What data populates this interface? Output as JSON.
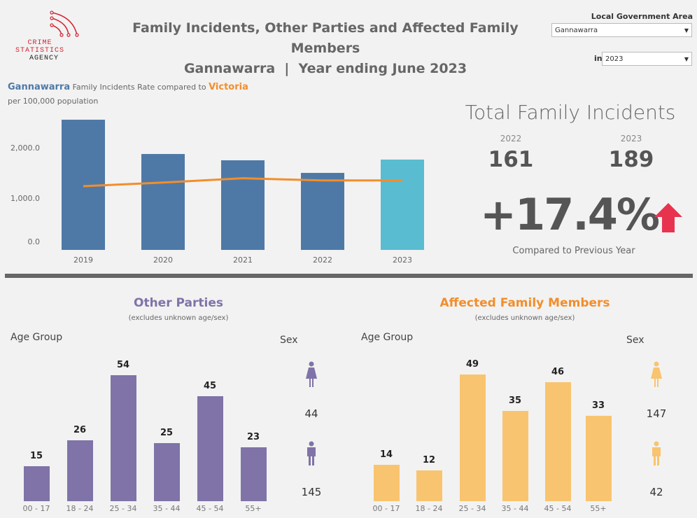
{
  "logo": {
    "line1": "CRIME",
    "line2": "STATISTICS",
    "line3": "AGENCY"
  },
  "header": {
    "title_line1": "Family Incidents, Other Parties and Affected Family Members",
    "title_line2": "Gannawarra  |  Year ending June 2023"
  },
  "filters": {
    "lga_label": "Local Government Area",
    "lga_value": "Gannawarra",
    "year_prefix": "in",
    "year_value": "2023"
  },
  "rate_chart": {
    "area": "Gannawarra",
    "middle": "Family Incidents Rate compared to",
    "comparison": "Victoria",
    "subtitle": "per 100,000 population"
  },
  "total": {
    "title": "Total Family Incidents",
    "prev_year": "2022",
    "prev_value": "161",
    "curr_year": "2023",
    "curr_value": "189",
    "change": "+17.4%",
    "change_caption": "Compared to Previous Year",
    "arrow_color": "#e8334f"
  },
  "other_parties": {
    "title": "Other Parties",
    "subtitle": "(excludes unknown age/sex)",
    "age_label": "Age Group",
    "sex_label": "Sex",
    "female": "44",
    "male": "145",
    "color": "#8073a8"
  },
  "affected": {
    "title": "Affected Family Members",
    "subtitle": "(excludes unknown age/sex)",
    "age_label": "Age Group",
    "sex_label": "Sex",
    "female": "147",
    "male": "42",
    "color": "#f9c46f"
  },
  "chart_data": [
    {
      "type": "bar",
      "categories": [
        "2019",
        "2020",
        "2021",
        "2022",
        "2023"
      ],
      "series": [
        {
          "name": "Gannawarra",
          "values": [
            2583,
            1903,
            1778,
            1528,
            1792
          ],
          "color": "#4e79a7",
          "highlight": "#59bcd1"
        },
        {
          "name": "Victoria",
          "type": "line",
          "values": [
            1264,
            1337,
            1421,
            1379,
            1379
          ],
          "color": "#f28e2b"
        }
      ],
      "yticks": [
        "0.0",
        "1,000.0",
        "2,000.0"
      ],
      "ylim": [
        0,
        2700
      ]
    },
    {
      "type": "bar",
      "title": "Other Parties",
      "categories": [
        "00 - 17",
        "18 - 24",
        "25 - 34",
        "35 - 44",
        "45 - 54",
        "55+"
      ],
      "values": [
        15,
        26,
        54,
        25,
        45,
        23
      ]
    },
    {
      "type": "bar",
      "title": "Affected Family Members",
      "categories": [
        "00 - 17",
        "18 - 24",
        "25 - 34",
        "35 - 44",
        "45 - 54",
        "55+"
      ],
      "values": [
        14,
        12,
        49,
        35,
        46,
        33
      ]
    }
  ]
}
